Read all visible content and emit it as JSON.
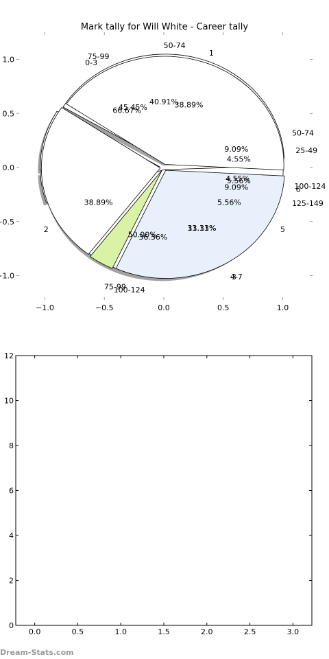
{
  "chart_data": [
    {
      "type": "pie",
      "title": "Mark tally for Will White - Career tally",
      "x_ticks": [
        "−1.0",
        "−0.5",
        "0.0",
        "0.5",
        "1.0"
      ],
      "y_ticks": [
        "1.0",
        "0.5",
        "0.0",
        "−0.5",
        "−1.0"
      ],
      "xlim": [
        -1.2,
        1.2
      ],
      "ylim": [
        -1.2,
        1.2
      ],
      "slice_labels": [
        {
          "text": "1",
          "x": 0.4,
          "y": 1.06
        },
        {
          "text": "50-74",
          "x": 0.09,
          "y": 1.13
        },
        {
          "text": "75-99",
          "x": -0.55,
          "y": 1.03
        },
        {
          "text": "0-3",
          "x": -0.61,
          "y": 0.97
        },
        {
          "text": "50-74",
          "x": 1.17,
          "y": 0.32
        },
        {
          "text": "25-49",
          "x": 1.2,
          "y": 0.16
        },
        {
          "text": "100-124",
          "x": 1.23,
          "y": -0.17
        },
        {
          "text": "6",
          "x": 1.13,
          "y": -0.2
        },
        {
          "text": "125-149",
          "x": 1.21,
          "y": -0.33
        },
        {
          "text": "5",
          "x": 1.0,
          "y": -0.57
        },
        {
          "text": "3",
          "x": 0.59,
          "y": -1.01
        },
        {
          "text": "4-7",
          "x": 0.61,
          "y": -1.01
        },
        {
          "text": "2",
          "x": -0.99,
          "y": -0.57
        },
        {
          "text": "75-99",
          "x": -0.41,
          "y": -1.1
        },
        {
          "text": "100-124",
          "x": -0.29,
          "y": -1.13
        }
      ],
      "percent_labels": [
        {
          "text": "40.91%",
          "x": 0.0,
          "y": 0.61
        },
        {
          "text": "38.89%",
          "x": 0.21,
          "y": 0.58
        },
        {
          "text": "45.45%",
          "x": -0.26,
          "y": 0.56
        },
        {
          "text": "66.67%",
          "x": -0.31,
          "y": 0.53
        },
        {
          "text": "9.09%",
          "x": 0.61,
          "y": 0.17
        },
        {
          "text": "4.55%",
          "x": 0.63,
          "y": 0.08
        },
        {
          "text": "4.55%",
          "x": 0.62,
          "y": -0.1
        },
        {
          "text": "5.56%",
          "x": 0.63,
          "y": -0.12
        },
        {
          "text": "9.09%",
          "x": 0.61,
          "y": -0.18
        },
        {
          "text": "5.56%",
          "x": 0.55,
          "y": -0.32
        },
        {
          "text": "38.89%",
          "x": -0.55,
          "y": -0.32
        },
        {
          "text": "11.11%",
          "x": 0.32,
          "y": -0.56
        },
        {
          "text": "33.33%",
          "x": 0.32,
          "y": -0.56
        },
        {
          "text": "50.00%",
          "x": -0.18,
          "y": -0.62
        },
        {
          "text": "36.36%",
          "x": -0.09,
          "y": -0.64
        }
      ],
      "series": [
        {
          "slices": [
            {
              "percent": 40.91,
              "color": "#ffffff"
            },
            {
              "percent": 9.09,
              "color": "#ffffff"
            },
            {
              "percent": 4.55,
              "color": "#ffffff"
            },
            {
              "percent": 45.45,
              "color": "#ffffff"
            }
          ]
        },
        {
          "slices": [
            {
              "percent": 66.67,
              "color": "#ffffff"
            },
            {
              "percent": 38.89,
              "color": "#ffffff"
            },
            {
              "percent": 5.56,
              "color": "#d9f2a6"
            },
            {
              "percent": 50.0,
              "color": "#e8f0fb"
            }
          ]
        }
      ]
    },
    {
      "type": "scatter",
      "title": "",
      "series": [],
      "xlim": [
        -0.22,
        3.22
      ],
      "ylim": [
        0,
        12
      ],
      "x_ticks": [
        "0.0",
        "0.5",
        "1.0",
        "1.5",
        "2.0",
        "2.5",
        "3.0"
      ],
      "y_ticks": [
        "0",
        "2",
        "4",
        "6",
        "8",
        "10",
        "12"
      ]
    }
  ],
  "watermark": "Dream-Stats.com"
}
